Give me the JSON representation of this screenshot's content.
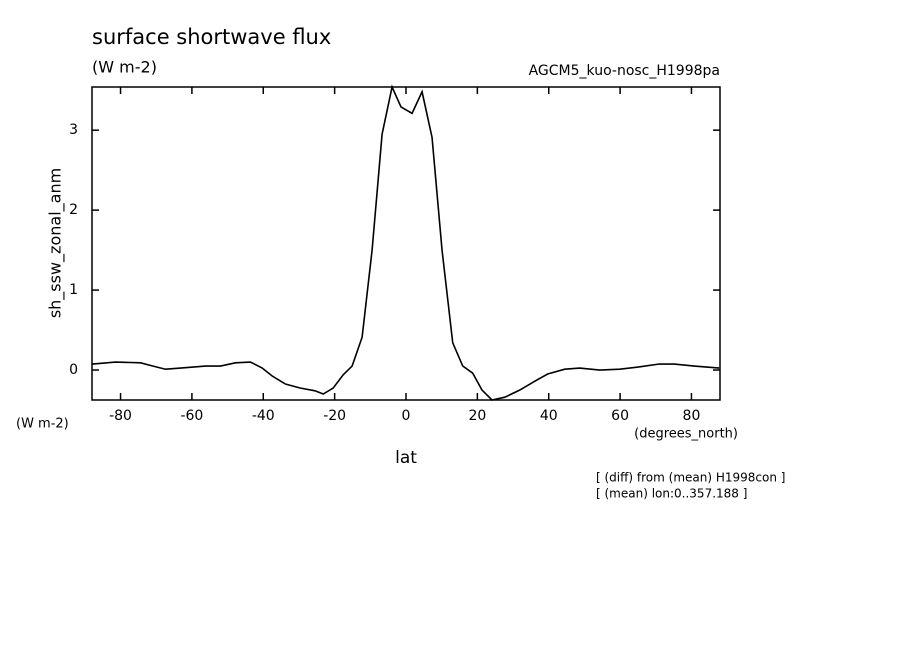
{
  "chart_data": {
    "type": "line",
    "title": "surface shortwave flux",
    "subtitle": "(W m-2)",
    "dataset_label": "AGCM5_kuo-nosc_H1998pa",
    "y_label": "sh_ssw_zonal_anm",
    "y_unit": "(W m-2)",
    "x_label": "lat",
    "x_unit": "(degrees_north)",
    "notes": [
      "[ (diff) from (mean) H1998con ]",
      "[ (mean) lon:0..357.188 ]"
    ],
    "color": "#000000",
    "x": [
      -87.9,
      -81.4,
      -74.4,
      -71,
      -67.4,
      -63.2,
      -56.2,
      -52,
      -47.8,
      -43.6,
      -40.3,
      -37.5,
      -33.8,
      -29.7,
      -25.5,
      -23.2,
      -20.4,
      -17.6,
      -15.1,
      -12.3,
      -9.5,
      -6.7,
      -3.9,
      -1.4,
      1.7,
      4.5,
      7.3,
      10.1,
      13.1,
      15.9,
      18.7,
      21.3,
      24.1,
      27.7,
      31.9,
      36.1,
      39.7,
      44.5,
      48.7,
      54.3,
      59.9,
      65.5,
      71,
      75.2,
      80.8,
      87.8
    ],
    "values": [
      0.075,
      0.1,
      0.09,
      0.05,
      0.01,
      0.025,
      0.05,
      0.05,
      0.09,
      0.1,
      0.025,
      -0.075,
      -0.175,
      -0.225,
      -0.26,
      -0.3,
      -0.225,
      -0.06,
      0.05,
      0.41,
      1.5,
      2.95,
      3.54,
      3.29,
      3.21,
      3.48,
      2.91,
      1.5,
      0.34,
      0.05,
      -0.04,
      -0.25,
      -0.375,
      -0.34,
      -0.25,
      -0.14,
      -0.05,
      0.01,
      0.025,
      0,
      0.01,
      0.04,
      0.075,
      0.075,
      0.05,
      0.025
    ],
    "xlim": [
      -88,
      88
    ],
    "ylim": [
      -0.375,
      3.54
    ],
    "xticks": [
      -80,
      -60,
      -40,
      -20,
      0,
      20,
      40,
      60,
      80
    ],
    "yticks": [
      0,
      1,
      2,
      3
    ]
  }
}
